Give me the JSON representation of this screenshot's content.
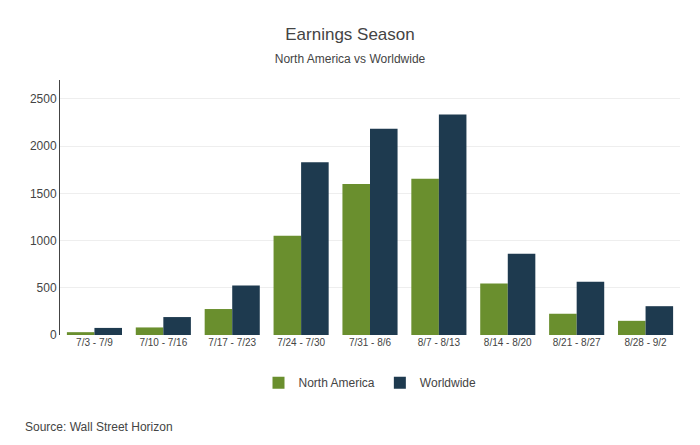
{
  "chart_data": {
    "type": "bar",
    "title": "Earnings Season",
    "subtitle": "North America vs Worldwide",
    "categories": [
      "7/3 - 7/9",
      "7/10 - 7/16",
      "7/17 - 7/23",
      "7/24 - 7/30",
      "7/31 - 8/6",
      "8/7 - 8/13",
      "8/14 - 8/20",
      "8/21 - 8/27",
      "8/28 - 9/2"
    ],
    "series": [
      {
        "name": "North America",
        "color": "#6a8f2e",
        "values": [
          30,
          80,
          275,
          1050,
          1600,
          1655,
          545,
          225,
          150
        ]
      },
      {
        "name": "Worldwide",
        "color": "#1e3a4f",
        "values": [
          75,
          190,
          525,
          1830,
          2185,
          2335,
          860,
          565,
          305
        ]
      }
    ],
    "ylim": [
      0,
      2700
    ],
    "yticks": [
      0,
      500,
      1000,
      1500,
      2000,
      2500
    ],
    "grid": true,
    "legend": "bottom",
    "annotations": [
      "Source: Wall Street Horizon"
    ]
  }
}
